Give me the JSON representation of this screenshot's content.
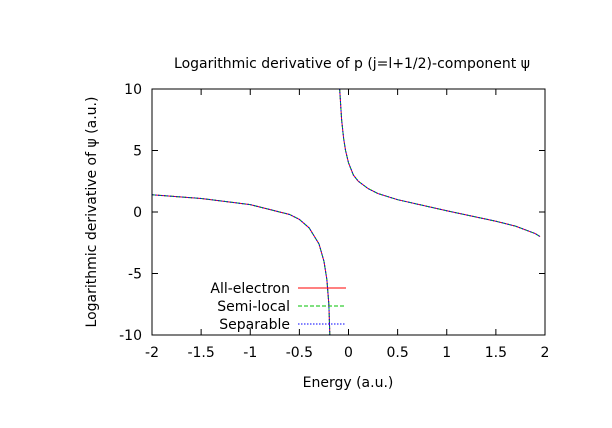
{
  "chart_data": {
    "type": "line",
    "title": "Logarithmic derivative of p (j=l+1/2)-component ψ",
    "xlabel": "Energy (a.u.)",
    "ylabel": "Logarithmic derivative of ψ (a.u.)",
    "xlim": [
      -2,
      2
    ],
    "ylim": [
      -10,
      10
    ],
    "x_ticks": [
      "-2",
      "-1.5",
      "-1",
      "-0.5",
      "0",
      "0.5",
      "1",
      "1.5",
      "2"
    ],
    "y_ticks": [
      "10",
      "5",
      "0",
      "-5",
      "-10"
    ],
    "legend_position": "bottom-left",
    "grid": false,
    "series": [
      {
        "name": "All-electron",
        "color": "#ff0000",
        "dash": "solid",
        "segments": [
          {
            "x": [
              -2.0,
              -1.5,
              -1.0,
              -0.6,
              -0.5,
              -0.4,
              -0.3,
              -0.25,
              -0.22,
              -0.2,
              -0.19
            ],
            "y": [
              1.4,
              1.1,
              0.6,
              -0.2,
              -0.6,
              -1.3,
              -2.6,
              -4.0,
              -5.5,
              -7.5,
              -10.0
            ]
          },
          {
            "x": [
              -0.09,
              -0.07,
              -0.05,
              -0.03,
              0.0,
              0.05,
              0.1,
              0.2,
              0.3,
              0.5,
              1.0,
              1.5,
              1.7,
              1.9,
              1.95
            ],
            "y": [
              10.0,
              7.5,
              6.0,
              5.0,
              4.0,
              3.0,
              2.5,
              1.9,
              1.5,
              1.0,
              0.1,
              -0.75,
              -1.15,
              -1.75,
              -2.0
            ]
          }
        ]
      },
      {
        "name": "Semi-local",
        "color": "#00c000",
        "dash": "dashed",
        "segments": [
          {
            "x": [
              -2.0,
              -1.5,
              -1.0,
              -0.6,
              -0.5,
              -0.4,
              -0.3,
              -0.25,
              -0.22,
              -0.2,
              -0.19
            ],
            "y": [
              1.4,
              1.1,
              0.6,
              -0.2,
              -0.6,
              -1.3,
              -2.6,
              -4.0,
              -5.5,
              -7.5,
              -10.0
            ]
          },
          {
            "x": [
              -0.09,
              -0.07,
              -0.05,
              -0.03,
              0.0,
              0.05,
              0.1,
              0.2,
              0.3,
              0.5,
              1.0,
              1.5,
              1.7,
              1.9,
              1.95
            ],
            "y": [
              10.0,
              7.5,
              6.0,
              5.0,
              4.0,
              3.0,
              2.5,
              1.9,
              1.5,
              1.0,
              0.1,
              -0.75,
              -1.15,
              -1.75,
              -2.0
            ]
          }
        ]
      },
      {
        "name": "Separable",
        "color": "#0000ff",
        "dash": "dotted",
        "segments": [
          {
            "x": [
              -2.0,
              -1.5,
              -1.0,
              -0.6,
              -0.5,
              -0.4,
              -0.3,
              -0.25,
              -0.22,
              -0.2,
              -0.19
            ],
            "y": [
              1.4,
              1.1,
              0.6,
              -0.2,
              -0.6,
              -1.3,
              -2.6,
              -4.0,
              -5.5,
              -7.5,
              -10.0
            ]
          },
          {
            "x": [
              -0.09,
              -0.07,
              -0.05,
              -0.03,
              0.0,
              0.05,
              0.1,
              0.2,
              0.3,
              0.5,
              1.0,
              1.5,
              1.7,
              1.9,
              1.95
            ],
            "y": [
              10.0,
              7.5,
              6.0,
              5.0,
              4.0,
              3.0,
              2.5,
              1.9,
              1.5,
              1.0,
              0.1,
              -0.75,
              -1.15,
              -1.75,
              -2.0
            ]
          }
        ]
      }
    ]
  }
}
